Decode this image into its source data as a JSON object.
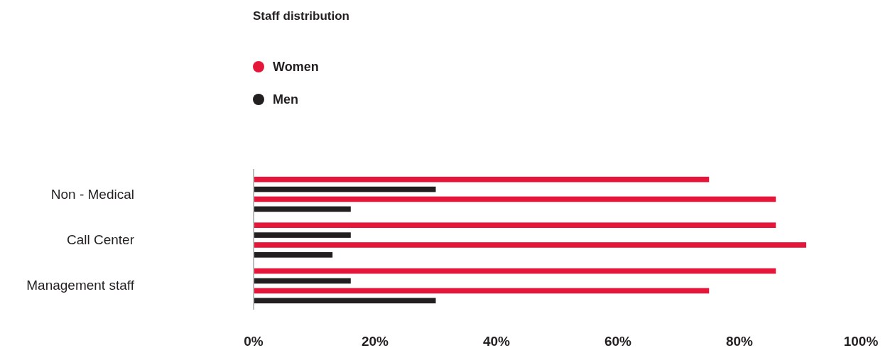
{
  "chart_data": {
    "type": "bar",
    "orientation": "horizontal",
    "title": "Staff distribution",
    "categories": [
      "Non - Medical",
      "Call Center",
      "Management staff"
    ],
    "series": [
      {
        "name": "Women",
        "color": "#e4163a",
        "values": [
          75,
          86,
          86
        ]
      },
      {
        "name": "Men",
        "color": "#231f20",
        "values": [
          30,
          16,
          16
        ]
      },
      {
        "color": "#e4163a",
        "values": [
          86,
          91,
          75
        ]
      },
      {
        "color": "#231f20",
        "values": [
          16,
          13,
          30
        ]
      }
    ],
    "xlim": [
      0,
      100
    ],
    "xticks": [
      {
        "value": 0,
        "label": "0%"
      },
      {
        "value": 20,
        "label": "20%"
      },
      {
        "value": 40,
        "label": "40%"
      },
      {
        "value": 60,
        "label": "60%"
      },
      {
        "value": 80,
        "label": "80%"
      },
      {
        "value": 100,
        "label": "100%"
      }
    ],
    "grid": false,
    "legend": "top left"
  }
}
